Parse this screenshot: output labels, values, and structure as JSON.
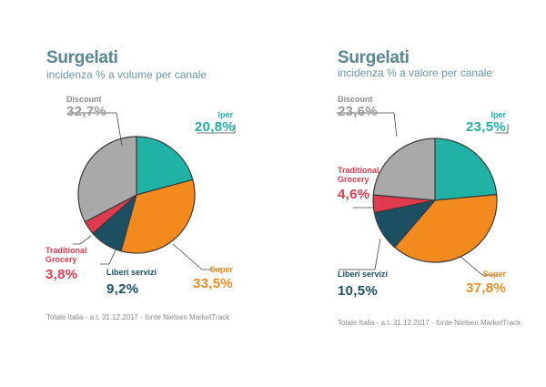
{
  "charts": [
    {
      "title": "Surgelati",
      "subtitle": "incidenza % a volume per canale",
      "footnote": "Totale Italia - a.t. 31.12.2017 - fonte Nielsen MarketTrack"
    },
    {
      "title": "Surgelati",
      "subtitle": "incidenza % a valore per canale",
      "footnote": "Totale Italia - a.t. 31.12.2017 - fonte Nielsen MarketTrack"
    }
  ],
  "chart_data": [
    {
      "type": "pie",
      "title": "Surgelati",
      "subtitle": "incidenza % a volume per canale",
      "slices": [
        {
          "name": "Iper",
          "value": 20.8,
          "label": "20,8%",
          "color": "#20b2a5"
        },
        {
          "name": "Super",
          "value": 33.5,
          "label": "33,5%",
          "color": "#f28a1e"
        },
        {
          "name": "Liberi servizi",
          "value": 9.2,
          "label": "9,2%",
          "color": "#1d4f63"
        },
        {
          "name": "Traditional Grocery",
          "value": 3.8,
          "label": "3,8%",
          "color": "#e03a4e"
        },
        {
          "name": "Discount",
          "value": 32.7,
          "label": "32,7%",
          "color": "#a9a9a9"
        }
      ]
    },
    {
      "type": "pie",
      "title": "Surgelati",
      "subtitle": "incidenza % a valore per canale",
      "slices": [
        {
          "name": "Iper",
          "value": 23.5,
          "label": "23,5%",
          "color": "#20b2a5"
        },
        {
          "name": "Super",
          "value": 37.8,
          "label": "37,8%",
          "color": "#f28a1e"
        },
        {
          "name": "Liberi servizi",
          "value": 10.5,
          "label": "10,5%",
          "color": "#1d4f63"
        },
        {
          "name": "Traditional Grocery",
          "value": 4.6,
          "label": "4,6%",
          "color": "#e03a4e"
        },
        {
          "name": "Discount",
          "value": 23.6,
          "label": "23,6%",
          "color": "#a9a9a9"
        }
      ]
    }
  ],
  "label_names": {
    "iper": "Iper",
    "super": "Super",
    "liberi": "Liberi servizi",
    "trad_line1": "Traditional",
    "trad_line2": "Grocery",
    "discount": "Discount"
  }
}
